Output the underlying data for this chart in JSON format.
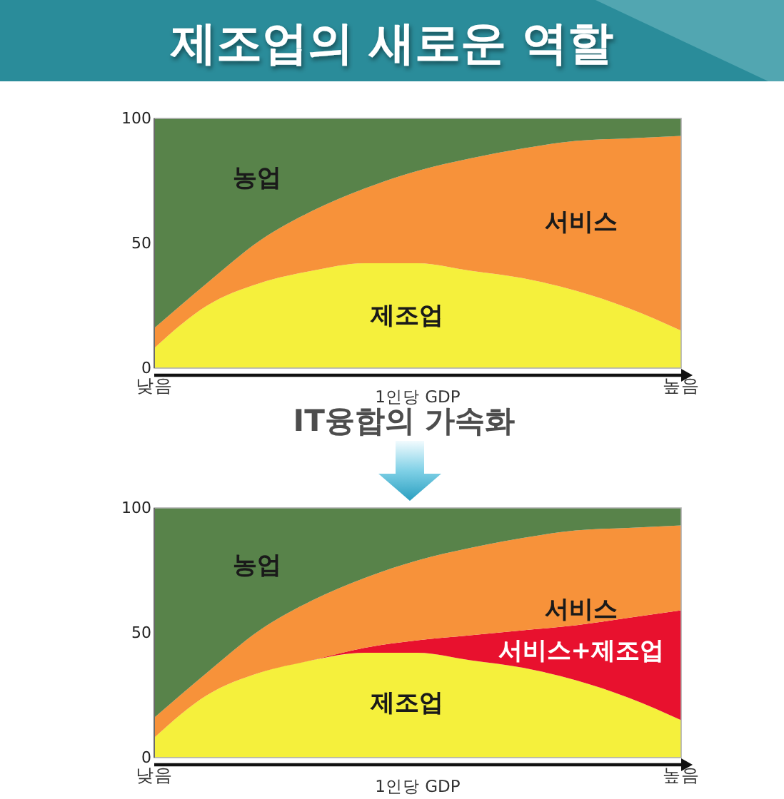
{
  "chart_data": [
    {
      "type": "area",
      "title": "제조업의 새로운 역할",
      "xlabel": "1인당 GDP",
      "stacked": true,
      "categories": [
        "낮음",
        null,
        null,
        null,
        null,
        null,
        null,
        null,
        null,
        null,
        "높음"
      ],
      "ylim": [
        0,
        100
      ],
      "yticks": [
        0,
        50,
        100
      ],
      "series": [
        {
          "name": "제조업",
          "color": "#f5f03c",
          "values": [
            8,
            25,
            34,
            39,
            42,
            42,
            39,
            36,
            31,
            24,
            15
          ]
        },
        {
          "name": "서비스",
          "color": "#f7923a",
          "values": [
            8,
            9,
            17,
            24,
            30,
            37,
            45,
            52,
            60,
            68,
            78
          ]
        },
        {
          "name": "농업",
          "color": "#58834a",
          "values": [
            84,
            66,
            49,
            37,
            28,
            21,
            16,
            12,
            9,
            8,
            7
          ]
        }
      ]
    },
    {
      "type": "area",
      "title": "IT융합의 가속화",
      "xlabel": "1인당 GDP",
      "stacked": true,
      "categories": [
        "낮음",
        null,
        null,
        null,
        null,
        null,
        null,
        null,
        null,
        null,
        "높음"
      ],
      "ylim": [
        0,
        100
      ],
      "yticks": [
        0,
        50,
        100
      ],
      "series": [
        {
          "name": "제조업",
          "color": "#f5f03c",
          "values": [
            8,
            25,
            34,
            39,
            42,
            42,
            39,
            36,
            31,
            24,
            15
          ]
        },
        {
          "name": "서비스+제조업",
          "color": "#e8112e",
          "values": [
            null,
            null,
            null,
            0,
            2,
            5,
            10,
            15,
            22,
            32,
            44
          ]
        },
        {
          "name": "서비스",
          "color": "#f7923a",
          "values": [
            8,
            9,
            17,
            24,
            28,
            32,
            35,
            37,
            38,
            36,
            34
          ]
        },
        {
          "name": "농업",
          "color": "#58834a",
          "values": [
            84,
            66,
            49,
            37,
            28,
            21,
            16,
            12,
            9,
            8,
            7
          ]
        }
      ]
    }
  ]
}
